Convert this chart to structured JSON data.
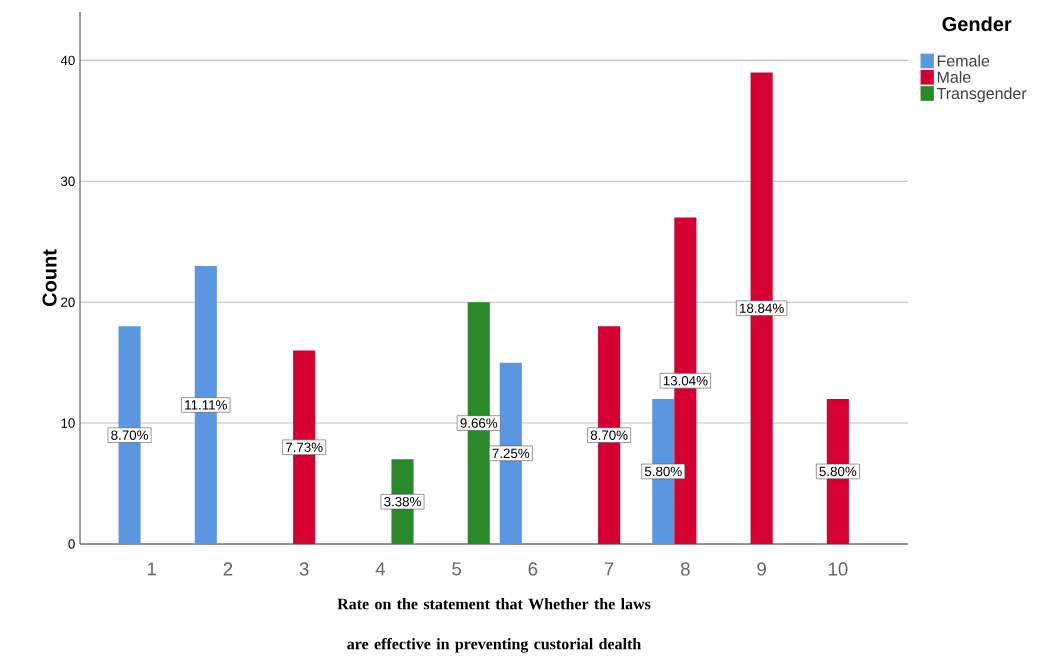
{
  "chart_data": {
    "type": "bar",
    "xlabel": "Rate on the statement that Whether the laws are effective in preventing custorial dealth",
    "ylabel": "Count",
    "legend_title": "Gender",
    "categories": [
      "1",
      "2",
      "3",
      "4",
      "5",
      "6",
      "7",
      "8",
      "9",
      "10"
    ],
    "series": [
      {
        "name": "Female",
        "color": "#5b97e1",
        "values": [
          18,
          23,
          null,
          null,
          null,
          15,
          null,
          12,
          null,
          null
        ]
      },
      {
        "name": "Male",
        "color": "#d50032",
        "values": [
          null,
          null,
          16,
          null,
          null,
          null,
          18,
          27,
          39,
          12
        ]
      },
      {
        "name": "Transgender",
        "color": "#2a8a2a",
        "values": [
          null,
          null,
          null,
          7,
          20,
          null,
          null,
          null,
          null,
          null
        ]
      }
    ],
    "annotations": [
      "8.70%",
      "11.11%",
      "7.73%",
      "3.38%",
      "9.66%",
      "7.25%",
      "8.70%",
      "5.80%",
      "13.04%",
      "18.84%",
      "5.80%"
    ],
    "ylim": [
      0,
      44
    ],
    "yticks": [
      0,
      10,
      20,
      30,
      40
    ],
    "grid": "y",
    "legend": "top right"
  }
}
